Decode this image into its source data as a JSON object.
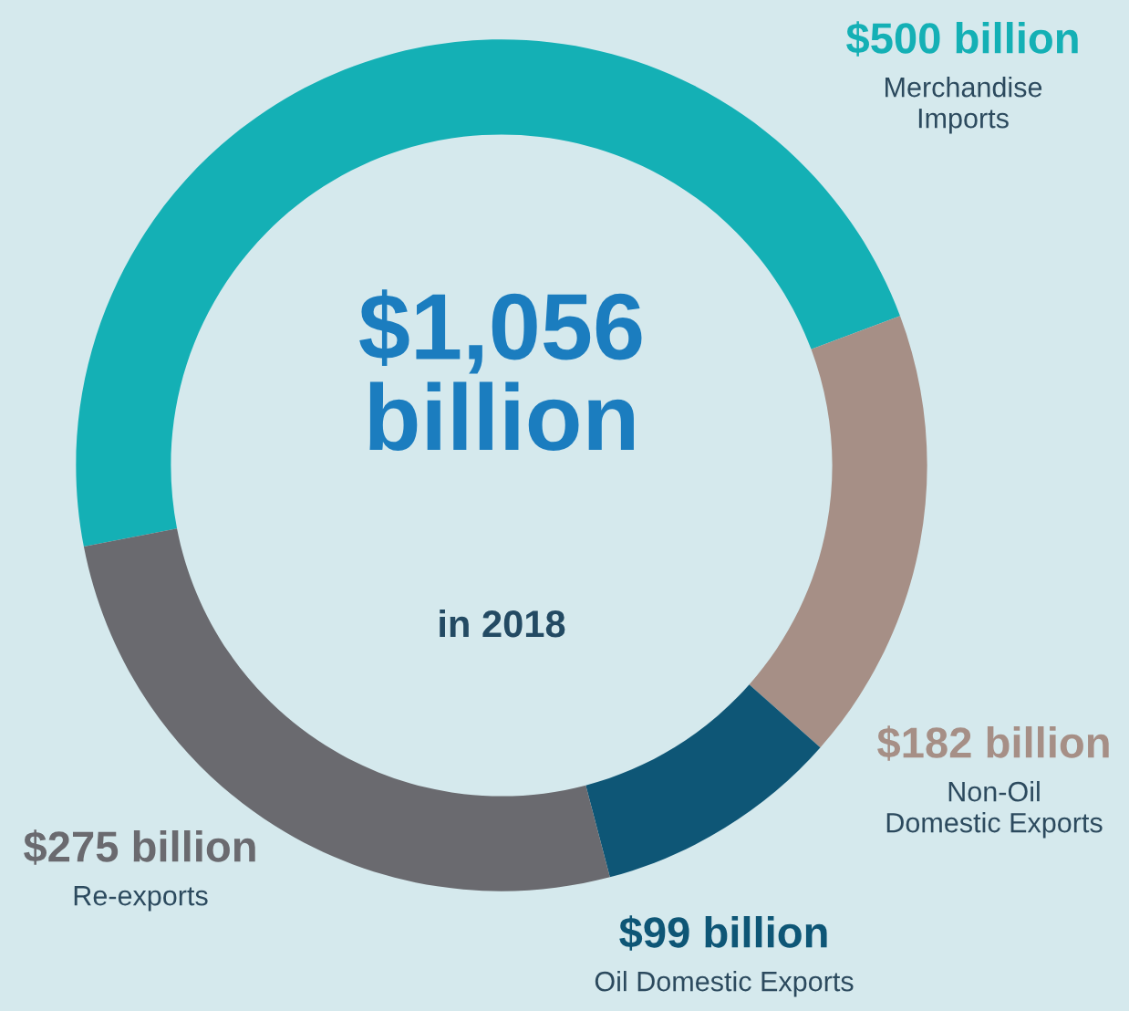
{
  "chart_data": {
    "type": "donut",
    "title": "$1,056\nbillion",
    "subtitle": "in 2018",
    "categories": [
      "Merchandise\nImports",
      "Non-Oil\nDomestic Exports",
      "Oil Domestic Exports",
      "Re-exports"
    ],
    "values": [
      500,
      182,
      99,
      275
    ],
    "colors": [
      "#14b0b5",
      "#a68f86",
      "#0e5676",
      "#6a6a6f"
    ],
    "value_labels": [
      "$500 billion",
      "$182 billion",
      "$99 billion",
      "$275 billion"
    ],
    "legend": false
  }
}
